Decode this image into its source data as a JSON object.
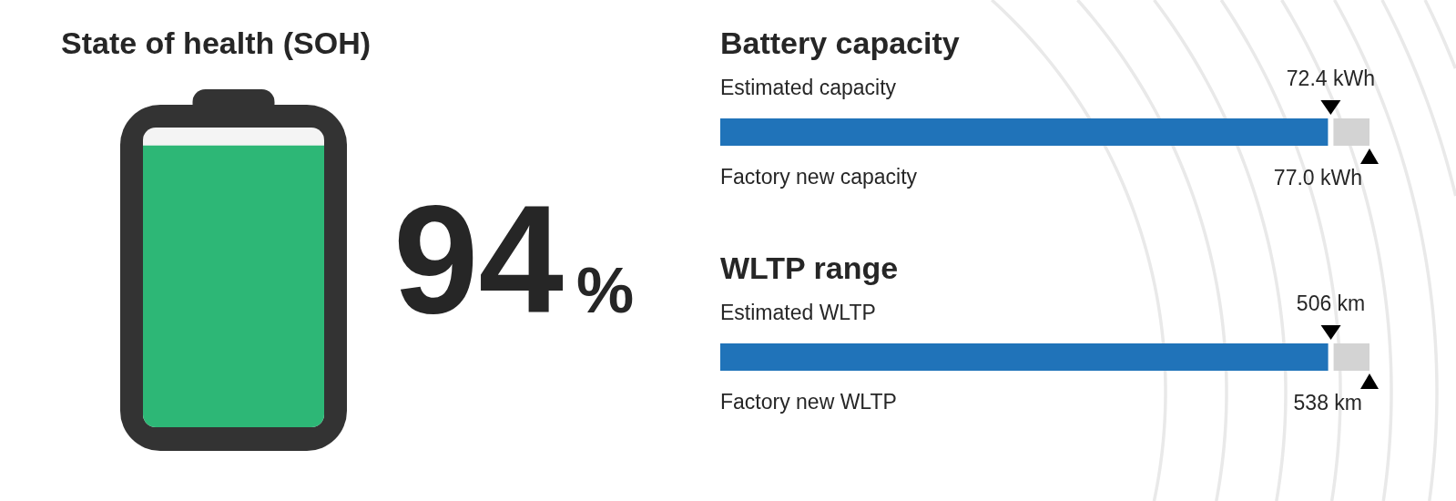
{
  "chart_data": [
    {
      "type": "other",
      "title": "State of health (SOH)",
      "values": [
        94
      ],
      "color": "#2db776",
      "value_labels": [
        "94%"
      ]
    },
    {
      "type": "other",
      "title": "Battery capacity",
      "categories": [
        "Estimated capacity",
        "Factory new capacity"
      ],
      "values": [
        72.4,
        77.0
      ],
      "value_labels": [
        "72.4 kWh",
        "77.0 kWh"
      ],
      "colors": [
        "#2073b9",
        "#d3d3d3"
      ]
    },
    {
      "type": "other",
      "title": "WLTP range",
      "categories": [
        "Estimated WLTP",
        "Factory new WLTP"
      ],
      "values": [
        506,
        538
      ],
      "value_labels": [
        "506 km",
        "538 km"
      ],
      "colors": [
        "#2073b9",
        "#d3d3d3"
      ]
    }
  ]
}
